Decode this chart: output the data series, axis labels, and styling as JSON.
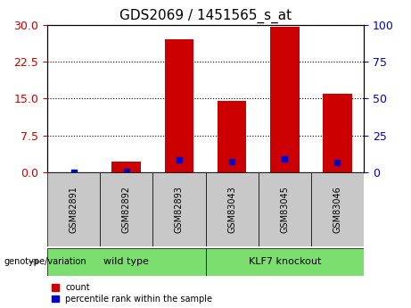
{
  "title": "GDS2069 / 1451565_s_at",
  "categories": [
    "GSM82891",
    "GSM82892",
    "GSM82893",
    "GSM83043",
    "GSM83045",
    "GSM83046"
  ],
  "count_values": [
    0,
    2.2,
    27,
    14.5,
    29.5,
    16
  ],
  "percentile_values": [
    0,
    1.0,
    8.5,
    7.5,
    9.0,
    6.8
  ],
  "left_ylim": [
    0,
    30
  ],
  "right_ylim": [
    0,
    100
  ],
  "left_yticks": [
    0,
    7.5,
    15,
    22.5,
    30
  ],
  "right_yticks": [
    0,
    25,
    50,
    75,
    100
  ],
  "bar_color": "#cc0000",
  "dot_color": "#0000cc",
  "left_axis_color": "#cc0000",
  "right_axis_color": "#0000cc",
  "legend_count_label": "count",
  "legend_pct_label": "percentile rank within the sample",
  "genotype_label": "genotype/variation",
  "groups": [
    {
      "label": "wild type",
      "start": 0,
      "end": 3
    },
    {
      "label": "KLF7 knockout",
      "start": 3,
      "end": 6
    }
  ],
  "group_color": "#7bde6e",
  "sample_box_color": "#c8c8c8"
}
